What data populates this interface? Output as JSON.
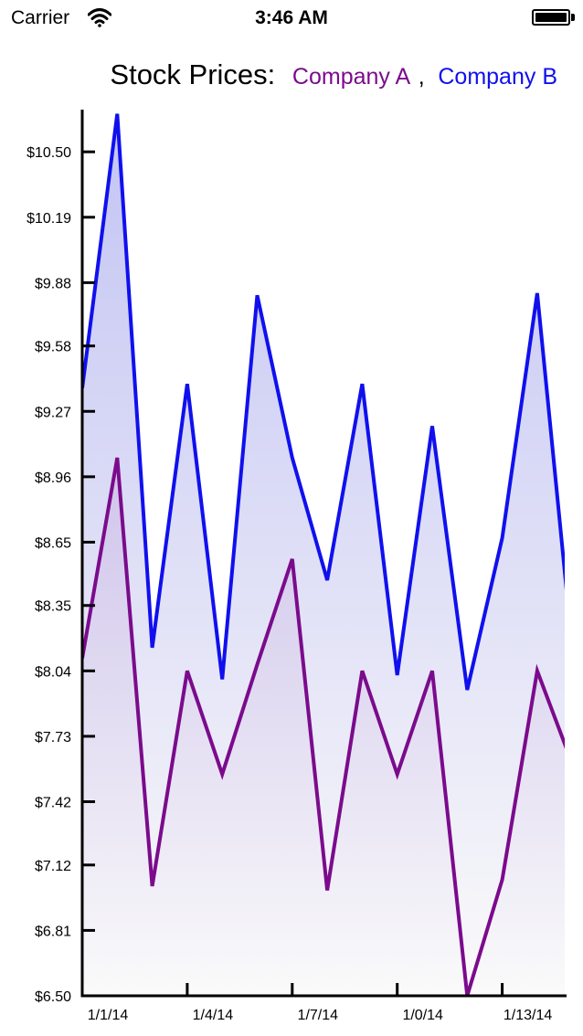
{
  "status_bar": {
    "carrier": "Carrier",
    "time": "3:46 AM",
    "wifi_icon": "wifi-icon",
    "battery_icon": "battery-icon"
  },
  "chart_data": {
    "type": "area",
    "title": "Stock Prices:",
    "title_separator": ",",
    "legend_placement": "top (in title)",
    "grid": false,
    "y_tick_labels": [
      "$6.50",
      "$6.81",
      "$7.12",
      "$7.42",
      "$7.73",
      "$8.04",
      "$8.35",
      "$8.65",
      "$8.96",
      "$9.27",
      "$9.58",
      "$9.88",
      "$10.19",
      "$10.50"
    ],
    "ylim": [
      6.5,
      10.7
    ],
    "x_tick_labels": [
      "1/1/14",
      "1/4/14",
      "1/7/14",
      "1/0/14",
      "1/13/14"
    ],
    "x_tick_index": [
      0,
      3,
      6,
      9,
      12
    ],
    "x_point_count": 15,
    "series": [
      {
        "name": "Company A",
        "color": "#7b0b8c",
        "values": [
          8.1,
          9.05,
          7.02,
          8.04,
          7.55,
          8.07,
          8.57,
          7.0,
          8.04,
          7.55,
          8.04,
          6.5,
          7.05,
          8.04,
          7.6
        ]
      },
      {
        "name": "Company B",
        "color": "#1010ee",
        "values": [
          9.38,
          10.68,
          8.15,
          9.4,
          8.0,
          9.82,
          9.05,
          8.47,
          9.4,
          8.02,
          9.2,
          7.95,
          8.67,
          9.83,
          8.15
        ]
      }
    ],
    "fill_colors": {
      "top": "#c3c4f3",
      "bottom": "#fafafa"
    },
    "axis_color": "#000000"
  }
}
